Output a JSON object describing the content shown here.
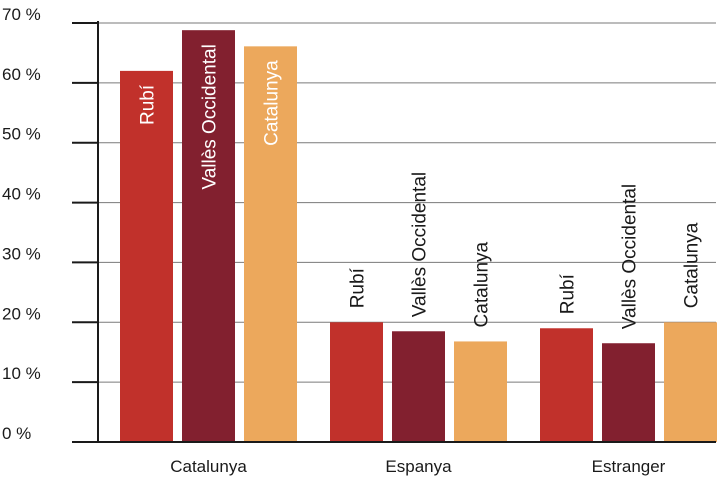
{
  "chart_data": {
    "type": "bar",
    "categories": [
      "Catalunya",
      "Espanya",
      "Estranger"
    ],
    "series": [
      {
        "name": "Rubí",
        "values": [
          62,
          20,
          19
        ],
        "color": "#C1312B"
      },
      {
        "name": "Vallès Occidental",
        "values": [
          68.8,
          18.5,
          16.5
        ],
        "color": "#82202F"
      },
      {
        "name": "Catalunya",
        "values": [
          66.1,
          16.8,
          20
        ],
        "color": "#ECA85C"
      }
    ],
    "yticks": [
      "0 %",
      "10 %",
      "20 %",
      "30 %",
      "40 %",
      "50 %",
      "60 %",
      "70 %"
    ],
    "ylim": [
      0,
      70
    ],
    "grid": true,
    "title": "",
    "xlabel": "",
    "ylabel": ""
  }
}
